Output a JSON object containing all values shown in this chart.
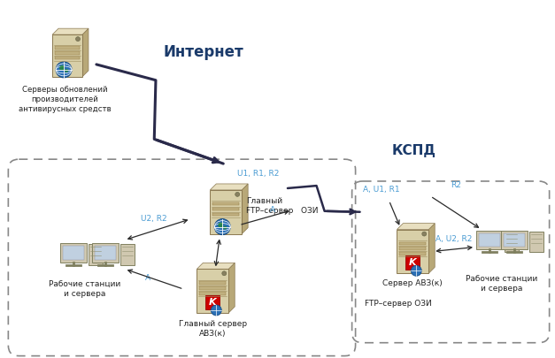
{
  "bg_color": "#ffffff",
  "internet_label": "Интернет",
  "kspd_label": "КСПД",
  "server_updates_label": "Серверы обновлений\nпроизводителей\nантивирусных средств",
  "ftp_main_label": "Главный\nFTP–сервер   ОЗИ",
  "avz_main_label": "Главный сервер\nАВЗ(к)",
  "workstations_left_label": "Рабочие станции\nи сервера",
  "avz_server_label": "Сервер АВЗ(к)",
  "ftp_ozi_label": "FTP–сервер ОЗИ",
  "workstations_right_label": "Рабочие станции\nи сервера",
  "label_u1r1r2": "U1, R1, R2",
  "label_u2r2": "U2, R2",
  "label_a_mid": "A",
  "label_a_left": "A",
  "label_au1r1": "A, U1, R1",
  "label_r2": "R2",
  "label_au2r2": "A, U2, R2",
  "cyan": "#4b9cd3",
  "dark_blue": "#1f3864",
  "arrow_dark": "#2f2f2f",
  "box_dash_color": "#777777"
}
